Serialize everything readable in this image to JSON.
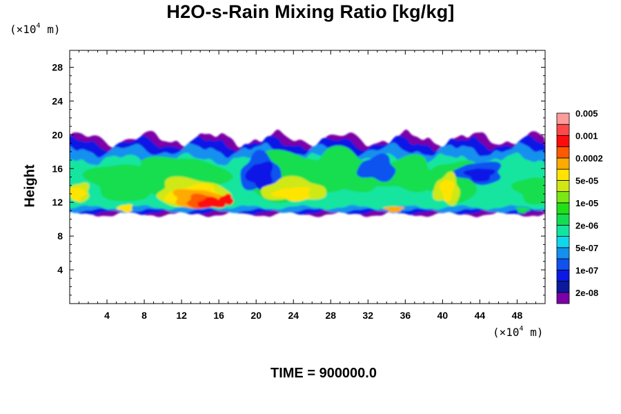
{
  "chart_data": {
    "type": "heatmap",
    "title": "H2O-s-Rain Mixing Ratio [kg/kg]",
    "ylabel": "Height",
    "x_unit": {
      "prefix": "(×10",
      "exp": "4",
      "suffix": " m)"
    },
    "y_unit": {
      "prefix": "(×10",
      "exp": "4",
      "suffix": " m)"
    },
    "xlim": [
      0,
      51
    ],
    "ylim": [
      0,
      30
    ],
    "x_ticks": [
      4,
      8,
      12,
      16,
      20,
      24,
      28,
      32,
      36,
      40,
      44,
      48
    ],
    "y_ticks": [
      4,
      8,
      12,
      16,
      20,
      24,
      28
    ],
    "grid": false,
    "footer": "TIME = 900000.0",
    "colorbar": {
      "colors": [
        "#7b00a8",
        "#0a1a9c",
        "#0c18e6",
        "#1052f0",
        "#1490ee",
        "#10d8ec",
        "#12e5a0",
        "#14de50",
        "#22e018",
        "#7ae814",
        "#cfe812",
        "#ffe400",
        "#ffaa00",
        "#ff5a00",
        "#ff0c0c",
        "#ff4848",
        "#ff9b9b"
      ],
      "labels": [
        "2e-08",
        "1e-07",
        "5e-07",
        "2e-06",
        "1e-05",
        "5e-05",
        "0.0002",
        "0.001",
        "0.005"
      ]
    },
    "rain_layer": {
      "base_height": 11,
      "top_height": 19.5,
      "peak_value": "0.005",
      "peak_location_x": [
        13,
        17
      ],
      "peak_location_y": [
        11.5,
        13.5
      ]
    }
  }
}
